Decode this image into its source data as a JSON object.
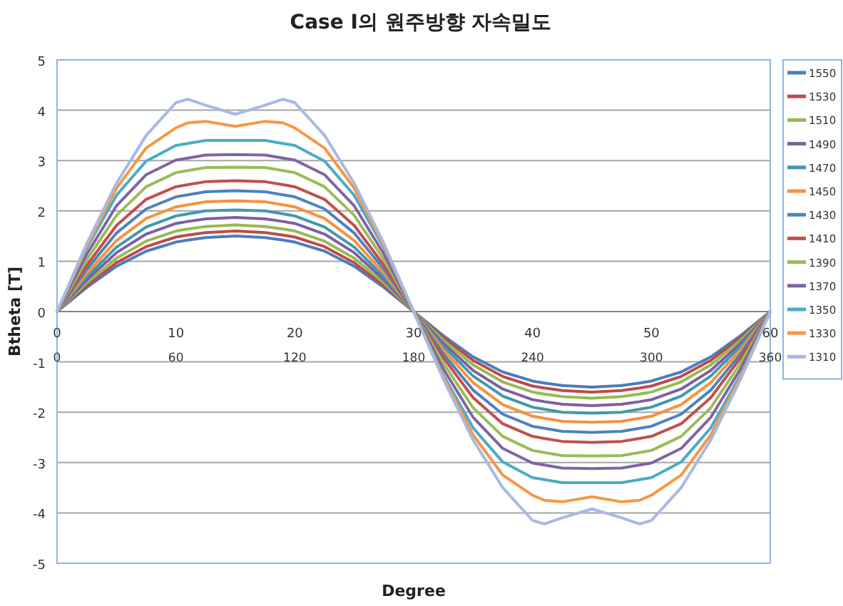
{
  "chart_data": {
    "type": "line",
    "title": "Case I의 원주방향 자속밀도",
    "xlabel": "Degree",
    "ylabel": "Btheta [T]",
    "x": [
      0,
      2.5,
      5,
      7.5,
      10,
      11,
      12.5,
      15,
      17.5,
      19,
      20,
      22.5,
      25,
      27.5,
      30,
      32.5,
      35,
      37.5,
      40,
      41,
      42.5,
      45,
      47.5,
      49,
      50,
      52.5,
      55,
      57.5,
      60
    ],
    "xlim": [
      0,
      60
    ],
    "xticks": [
      0,
      10,
      20,
      30,
      40,
      50,
      60
    ],
    "x2lim": [
      0,
      360
    ],
    "x2ticks": [
      0,
      60,
      120,
      180,
      240,
      300,
      360
    ],
    "ylim": [
      -5,
      5
    ],
    "yticks": [
      -5,
      -4,
      -3,
      -2,
      -1,
      0,
      1,
      2,
      3,
      4,
      5
    ],
    "grid": "y",
    "legend": "right",
    "series": [
      {
        "name": "1550",
        "color": "#4a7ebb",
        "values": [
          0,
          0.48,
          0.9,
          1.2,
          1.38,
          1.42,
          1.47,
          1.5,
          1.47,
          1.42,
          1.38,
          1.2,
          0.9,
          0.48,
          0,
          -0.48,
          -0.9,
          -1.2,
          -1.38,
          -1.42,
          -1.47,
          -1.5,
          -1.47,
          -1.42,
          -1.38,
          -1.2,
          -0.9,
          -0.48,
          0
        ]
      },
      {
        "name": "1530",
        "color": "#be4b48",
        "values": [
          0,
          0.52,
          0.97,
          1.29,
          1.48,
          1.52,
          1.57,
          1.6,
          1.57,
          1.52,
          1.48,
          1.29,
          0.97,
          0.52,
          0,
          -0.52,
          -0.97,
          -1.29,
          -1.48,
          -1.52,
          -1.57,
          -1.6,
          -1.57,
          -1.52,
          -1.48,
          -1.29,
          -0.97,
          -0.52,
          0
        ]
      },
      {
        "name": "1510",
        "color": "#98b954",
        "values": [
          0,
          0.57,
          1.06,
          1.4,
          1.6,
          1.64,
          1.69,
          1.72,
          1.69,
          1.64,
          1.6,
          1.4,
          1.06,
          0.57,
          0,
          -0.57,
          -1.06,
          -1.4,
          -1.6,
          -1.64,
          -1.69,
          -1.72,
          -1.69,
          -1.64,
          -1.6,
          -1.4,
          -1.06,
          -0.57,
          0
        ]
      },
      {
        "name": "1490",
        "color": "#7d60a0",
        "values": [
          0,
          0.63,
          1.17,
          1.54,
          1.75,
          1.79,
          1.84,
          1.87,
          1.84,
          1.79,
          1.75,
          1.54,
          1.17,
          0.63,
          0,
          -0.63,
          -1.17,
          -1.54,
          -1.75,
          -1.79,
          -1.84,
          -1.87,
          -1.84,
          -1.79,
          -1.75,
          -1.54,
          -1.17,
          -0.63,
          0
        ]
      },
      {
        "name": "1470",
        "color": "#4198af",
        "values": [
          0,
          0.69,
          1.28,
          1.68,
          1.9,
          1.94,
          2.0,
          2.02,
          2.0,
          1.94,
          1.9,
          1.68,
          1.28,
          0.69,
          0,
          -0.69,
          -1.28,
          -1.68,
          -1.9,
          -1.94,
          -2.0,
          -2.02,
          -2.0,
          -1.94,
          -1.9,
          -1.68,
          -1.28,
          -0.69,
          0
        ]
      },
      {
        "name": "1450",
        "color": "#f6923d",
        "values": [
          0,
          0.76,
          1.41,
          1.85,
          2.08,
          2.12,
          2.18,
          2.2,
          2.18,
          2.12,
          2.08,
          1.85,
          1.41,
          0.76,
          0,
          -0.76,
          -1.41,
          -1.85,
          -2.08,
          -2.12,
          -2.18,
          -2.2,
          -2.18,
          -2.12,
          -2.08,
          -1.85,
          -1.41,
          -0.76,
          0
        ]
      },
      {
        "name": "1430",
        "color": "#4f81bd",
        "values": [
          0,
          0.84,
          1.56,
          2.04,
          2.28,
          2.32,
          2.38,
          2.4,
          2.38,
          2.32,
          2.28,
          2.04,
          1.56,
          0.84,
          0,
          -0.84,
          -1.56,
          -2.04,
          -2.28,
          -2.32,
          -2.38,
          -2.4,
          -2.38,
          -2.32,
          -2.28,
          -2.04,
          -1.56,
          -0.84,
          0
        ]
      },
      {
        "name": "1410",
        "color": "#c0504d",
        "values": [
          0,
          0.92,
          1.71,
          2.23,
          2.48,
          2.52,
          2.58,
          2.6,
          2.58,
          2.52,
          2.48,
          2.23,
          1.71,
          0.92,
          0,
          -0.92,
          -1.71,
          -2.23,
          -2.48,
          -2.52,
          -2.58,
          -2.6,
          -2.58,
          -2.52,
          -2.48,
          -2.23,
          -1.71,
          -0.92,
          0
        ]
      },
      {
        "name": "1390",
        "color": "#9bbb59",
        "values": [
          0,
          1.03,
          1.91,
          2.48,
          2.76,
          2.8,
          2.86,
          2.87,
          2.86,
          2.8,
          2.76,
          2.48,
          1.91,
          1.03,
          0,
          -1.03,
          -1.91,
          -2.48,
          -2.76,
          -2.8,
          -2.86,
          -2.87,
          -2.86,
          -2.8,
          -2.76,
          -2.48,
          -1.91,
          -1.03,
          0
        ]
      },
      {
        "name": "1370",
        "color": "#8064a2",
        "values": [
          0,
          1.14,
          2.1,
          2.72,
          3.01,
          3.05,
          3.11,
          3.12,
          3.11,
          3.05,
          3.01,
          2.72,
          2.1,
          1.14,
          0,
          -1.14,
          -2.1,
          -2.72,
          -3.01,
          -3.05,
          -3.11,
          -3.12,
          -3.11,
          -3.05,
          -3.01,
          -2.72,
          -2.1,
          -1.14,
          0
        ]
      },
      {
        "name": "1350",
        "color": "#4bacc6",
        "values": [
          0,
          1.26,
          2.31,
          2.99,
          3.3,
          3.34,
          3.4,
          3.4,
          3.4,
          3.34,
          3.3,
          2.99,
          2.31,
          1.26,
          0,
          -1.26,
          -2.31,
          -2.99,
          -3.3,
          -3.34,
          -3.4,
          -3.4,
          -3.4,
          -3.34,
          -3.3,
          -2.99,
          -2.31,
          -1.26,
          0
        ]
      },
      {
        "name": "1330",
        "color": "#f79646",
        "values": [
          0,
          1.3,
          2.45,
          3.25,
          3.65,
          3.75,
          3.78,
          3.68,
          3.78,
          3.75,
          3.65,
          3.25,
          2.45,
          1.3,
          0,
          -1.3,
          -2.45,
          -3.25,
          -3.65,
          -3.75,
          -3.78,
          -3.68,
          -3.78,
          -3.75,
          -3.65,
          -3.25,
          -2.45,
          -1.3,
          0
        ]
      },
      {
        "name": "1310",
        "color": "#a7b9e3",
        "values": [
          0,
          1.35,
          2.55,
          3.5,
          4.15,
          4.22,
          4.1,
          3.92,
          4.1,
          4.22,
          4.15,
          3.5,
          2.55,
          1.35,
          0,
          -1.35,
          -2.55,
          -3.5,
          -4.15,
          -4.22,
          -4.1,
          -3.92,
          -4.1,
          -4.22,
          -4.15,
          -3.5,
          -2.55,
          -1.35,
          0
        ]
      }
    ]
  }
}
